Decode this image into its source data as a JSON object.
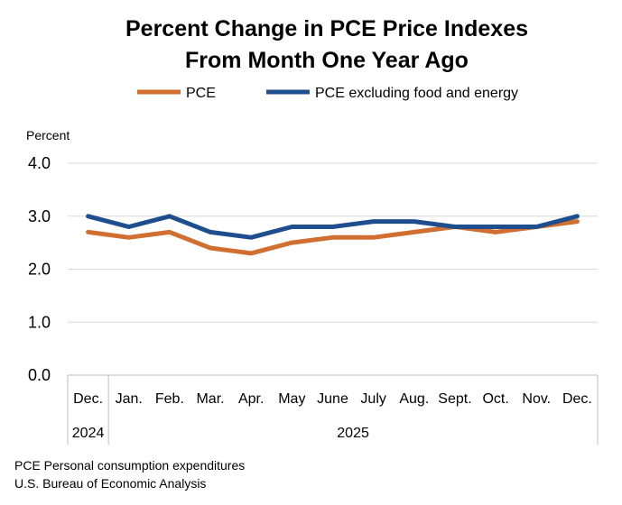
{
  "chart_data": {
    "type": "line",
    "title": [
      "Percent Change in PCE Price Indexes",
      "From Month One Year Ago"
    ],
    "ylabel": "Percent",
    "ylim": [
      0,
      4
    ],
    "yticks": [
      "0.0",
      "1.0",
      "2.0",
      "3.0",
      "4.0"
    ],
    "categories": [
      "Dec.",
      "Jan.",
      "Feb.",
      "Mar.",
      "Apr.",
      "May",
      "June",
      "July",
      "Aug.",
      "Sept.",
      "Oct.",
      "Nov.",
      "Dec."
    ],
    "years": [
      {
        "label": "2024",
        "span": [
          0,
          0
        ]
      },
      {
        "label": "2025",
        "span": [
          1,
          12
        ]
      }
    ],
    "grid": true,
    "legend_position": "top",
    "series": [
      {
        "name": "PCE",
        "color": "#d06f2f",
        "values": [
          2.7,
          2.6,
          2.7,
          2.4,
          2.3,
          2.5,
          2.6,
          2.6,
          2.7,
          2.8,
          2.7,
          2.8,
          2.9
        ]
      },
      {
        "name": "PCE excluding food and energy",
        "color": "#1f4e8f",
        "values": [
          3.0,
          2.8,
          3.0,
          2.7,
          2.6,
          2.8,
          2.8,
          2.9,
          2.9,
          2.8,
          2.8,
          2.8,
          3.0
        ]
      }
    ]
  },
  "footer": {
    "line1": "PCE Personal consumption expenditures",
    "line2": "U.S. Bureau of Economic Analysis"
  }
}
